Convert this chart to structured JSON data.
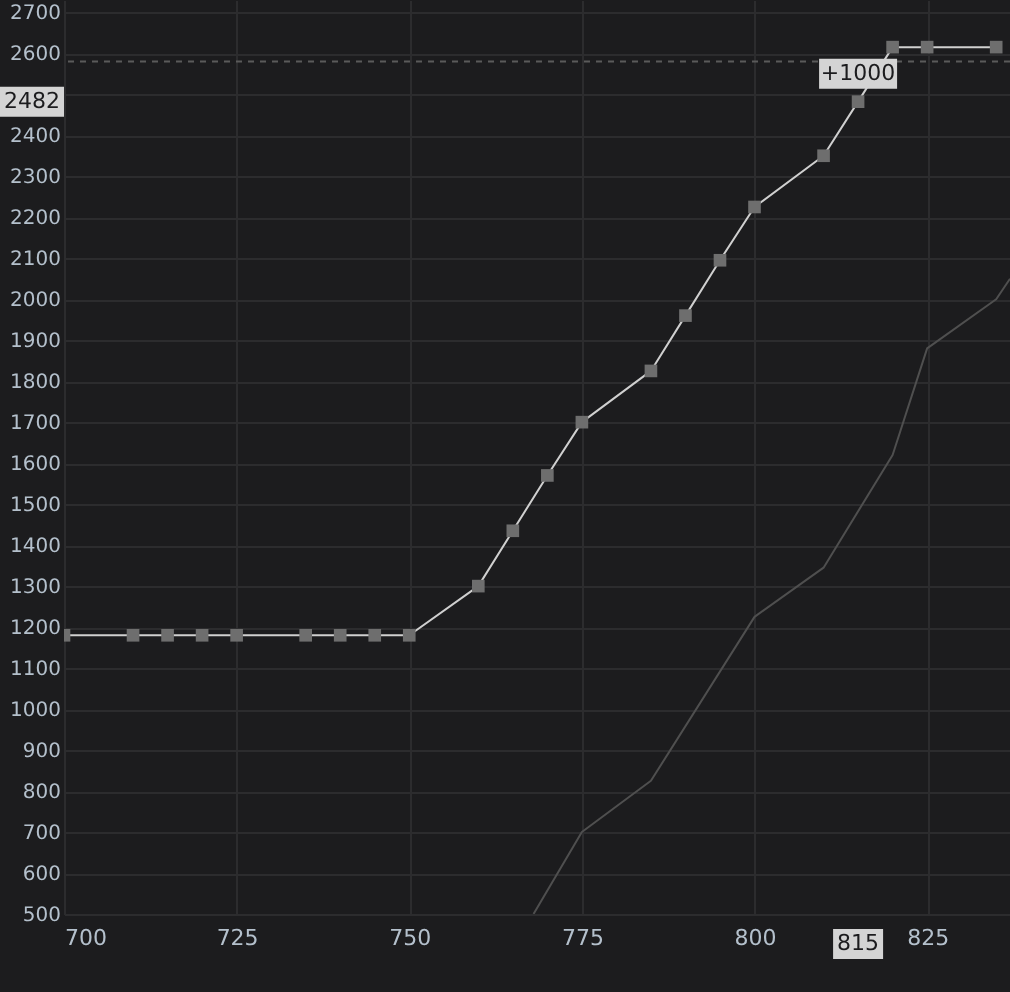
{
  "chart_data": {
    "type": "line",
    "xlim": [
      700,
      837
    ],
    "ylim": [
      500,
      2730
    ],
    "xticks": [
      700,
      725,
      750,
      775,
      800,
      825
    ],
    "yticks": [
      500,
      600,
      700,
      800,
      900,
      1000,
      1100,
      1200,
      1300,
      1400,
      1500,
      1600,
      1700,
      1800,
      1900,
      2000,
      2100,
      2200,
      2300,
      2400,
      {
        "value": 2500,
        "label": null
      },
      2600,
      2700
    ],
    "grid": true,
    "line_style": "solid",
    "series": [
      {
        "color": "#d0d0d0",
        "marker": "square",
        "x": [
          700,
          710,
          715,
          720,
          725,
          735,
          740,
          745,
          750,
          760,
          765,
          770,
          775,
          785,
          790,
          795,
          800,
          810,
          815,
          820,
          825,
          835
        ],
        "values": [
          1180,
          1180,
          1180,
          1180,
          1180,
          1180,
          1180,
          1180,
          1180,
          1300,
          1435,
          1570,
          1700,
          1825,
          1960,
          2095,
          2225,
          2350,
          2482,
          2615,
          2615,
          2615
        ]
      },
      {
        "color": "#4f4f4f",
        "marker": "none",
        "x": [
          768,
          775,
          785,
          800,
          810,
          820,
          825,
          835,
          837
        ],
        "values": [
          500,
          700,
          825,
          1225,
          1345,
          1620,
          1880,
          2000,
          2050
        ]
      }
    ],
    "ref_lines": [
      {
        "axis": "y",
        "value": 2580,
        "color": "#5a5a5a",
        "line_style": "dashed"
      }
    ],
    "annotations": [
      {
        "text": "+1000",
        "x": 815,
        "y": 2482
      },
      "815",
      "2482"
    ]
  }
}
